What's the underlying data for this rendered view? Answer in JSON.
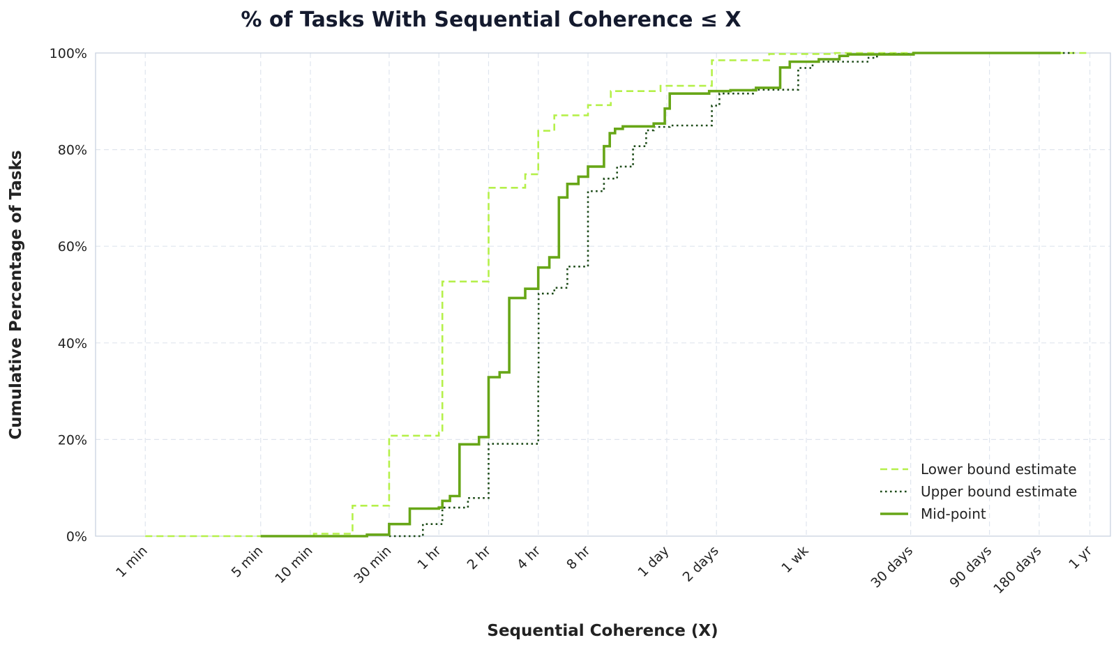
{
  "chart_data": {
    "type": "line",
    "step": true,
    "title": "% of Tasks With Sequential Coherence ≤ X",
    "xlabel": "Sequential Coherence (X)",
    "ylabel": "Cumulative Percentage of Tasks",
    "x_scale": "log",
    "x_unit": "minutes",
    "xlim_minutes": [
      0.5,
      700000
    ],
    "ylim": [
      0,
      100
    ],
    "grid": true,
    "legend_position": "lower-right",
    "x_ticks": [
      {
        "label": "1 min",
        "minutes": 1
      },
      {
        "label": "5 min",
        "minutes": 5
      },
      {
        "label": "10 min",
        "minutes": 10
      },
      {
        "label": "30 min",
        "minutes": 30
      },
      {
        "label": "1 hr",
        "minutes": 60
      },
      {
        "label": "2 hr",
        "minutes": 120
      },
      {
        "label": "4 hr",
        "minutes": 240
      },
      {
        "label": "8 hr",
        "minutes": 480
      },
      {
        "label": "1 day",
        "minutes": 1440
      },
      {
        "label": "2 days",
        "minutes": 2880
      },
      {
        "label": "1 wk",
        "minutes": 10080
      },
      {
        "label": "30 days",
        "minutes": 43200
      },
      {
        "label": "90 days",
        "minutes": 129600
      },
      {
        "label": "180 days",
        "minutes": 259200
      },
      {
        "label": "1 yr",
        "minutes": 525600
      }
    ],
    "y_ticks": [
      {
        "label": "0%",
        "value": 0
      },
      {
        "label": "20%",
        "value": 20
      },
      {
        "label": "40%",
        "value": 40
      },
      {
        "label": "60%",
        "value": 60
      },
      {
        "label": "80%",
        "value": 80
      },
      {
        "label": "100%",
        "value": 100
      }
    ],
    "series": [
      {
        "name": "Lower bound estimate",
        "color": "#b5f04a",
        "style": "dashed",
        "points": [
          [
            1,
            0
          ],
          [
            10.5,
            0.5
          ],
          [
            18,
            6.3
          ],
          [
            30,
            20.8
          ],
          [
            60,
            21.5
          ],
          [
            63,
            52.7
          ],
          [
            120,
            72.1
          ],
          [
            200,
            74.9
          ],
          [
            240,
            83.9
          ],
          [
            300,
            87.1
          ],
          [
            480,
            89.2
          ],
          [
            660,
            92.1
          ],
          [
            1320,
            93.2
          ],
          [
            2700,
            98.5
          ],
          [
            6000,
            99.8
          ],
          [
            15000,
            100
          ],
          [
            524000,
            100
          ]
        ]
      },
      {
        "name": "Upper bound estimate",
        "color": "#1c4a17",
        "style": "dotted",
        "points": [
          [
            30,
            0
          ],
          [
            48,
            2.5
          ],
          [
            63,
            5.9
          ],
          [
            90,
            7.9
          ],
          [
            120,
            19.1
          ],
          [
            240,
            32.9
          ],
          [
            241,
            50.2
          ],
          [
            300,
            51.4
          ],
          [
            360,
            55.8
          ],
          [
            480,
            71.4
          ],
          [
            600,
            74
          ],
          [
            720,
            76.5
          ],
          [
            900,
            80.7
          ],
          [
            1080,
            84
          ],
          [
            1200,
            84.7
          ],
          [
            1500,
            85
          ],
          [
            2700,
            89.1
          ],
          [
            3000,
            91.6
          ],
          [
            4800,
            92.4
          ],
          [
            9000,
            96.9
          ],
          [
            11000,
            98.2
          ],
          [
            24000,
            99
          ],
          [
            27000,
            99.8
          ],
          [
            45000,
            100
          ],
          [
            420000,
            100
          ]
        ]
      },
      {
        "name": "Mid-point",
        "color": "#67a617",
        "style": "solid",
        "points": [
          [
            5,
            0
          ],
          [
            22,
            0.3
          ],
          [
            30,
            2.5
          ],
          [
            40,
            5.7
          ],
          [
            60,
            5.9
          ],
          [
            63,
            7.3
          ],
          [
            70,
            8.3
          ],
          [
            80,
            19.0
          ],
          [
            105,
            20.5
          ],
          [
            120,
            32.9
          ],
          [
            140,
            33.9
          ],
          [
            160,
            49.3
          ],
          [
            200,
            51.2
          ],
          [
            240,
            55.6
          ],
          [
            280,
            57.7
          ],
          [
            320,
            70.1
          ],
          [
            360,
            72.9
          ],
          [
            420,
            74.4
          ],
          [
            480,
            76.5
          ],
          [
            600,
            80.7
          ],
          [
            650,
            83.4
          ],
          [
            700,
            84.3
          ],
          [
            780,
            84.8
          ],
          [
            1200,
            85.4
          ],
          [
            1400,
            88.5
          ],
          [
            1500,
            91.6
          ],
          [
            2600,
            92.1
          ],
          [
            3500,
            92.3
          ],
          [
            5000,
            92.8
          ],
          [
            7000,
            97.0
          ],
          [
            8000,
            98.2
          ],
          [
            12000,
            98.7
          ],
          [
            16000,
            99.4
          ],
          [
            18000,
            99.7
          ],
          [
            45000,
            100
          ],
          [
            350000,
            100
          ]
        ]
      }
    ]
  }
}
